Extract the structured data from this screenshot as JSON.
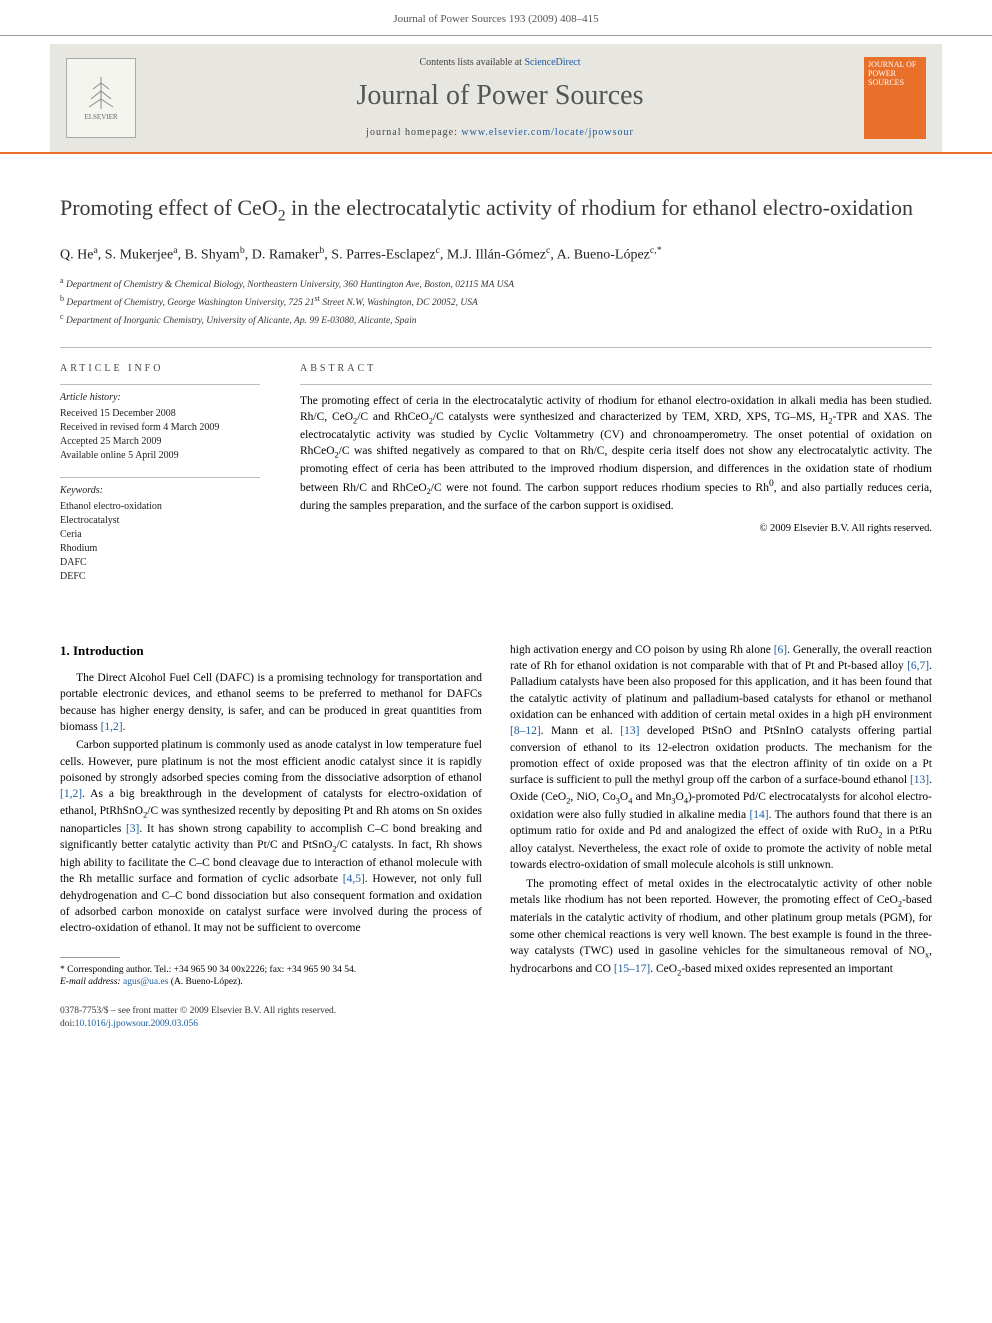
{
  "header": {
    "running_head": "Journal of Power Sources 193 (2009) 408–415"
  },
  "banner": {
    "contents_prefix": "Contents lists available at ",
    "contents_link": "ScienceDirect",
    "journal_name": "Journal of Power Sources",
    "homepage_prefix": "journal homepage: ",
    "homepage_url": "www.elsevier.com/locate/jpowsour",
    "publisher_label": "ELSEVIER",
    "cover_text": "JOURNAL OF POWER SOURCES"
  },
  "article": {
    "title_html": "Promoting effect of CeO<sub>2</sub> in the electrocatalytic activity of rhodium for ethanol electro-oxidation",
    "authors_html": "Q. He<sup>a</sup>, S. Mukerjee<sup>a</sup>, B. Shyam<sup>b</sup>, D. Ramaker<sup>b</sup>, S. Parres-Esclapez<sup>c</sup>, M.J. Illán-Gómez<sup>c</sup>, A. Bueno-López<sup>c,*</sup>",
    "affiliations": [
      "<sup>a</sup> Department of Chemistry & Chemical Biology, Northeastern University, 360 Huntington Ave, Boston, 02115 MA USA",
      "<sup>b</sup> Department of Chemistry, George Washington University, 725 21<sup>st</sup> Street N.W, Washington, DC 20052, USA",
      "<sup>c</sup> Department of Inorganic Chemistry, University of Alicante, Ap. 99 E-03080, Alicante, Spain"
    ]
  },
  "info": {
    "heading": "ARTICLE INFO",
    "history_label": "Article history:",
    "history": [
      "Received 15 December 2008",
      "Received in revised form 4 March 2009",
      "Accepted 25 March 2009",
      "Available online 5 April 2009"
    ],
    "keywords_label": "Keywords:",
    "keywords": [
      "Ethanol electro-oxidation",
      "Electrocatalyst",
      "Ceria",
      "Rhodium",
      "DAFC",
      "DEFC"
    ]
  },
  "abstract": {
    "heading": "ABSTRACT",
    "text_html": "The promoting effect of ceria in the electrocatalytic activity of rhodium for ethanol electro-oxidation in alkali media has been studied. Rh/C, CeO<sub>2</sub>/C and RhCeO<sub>2</sub>/C catalysts were synthesized and characterized by TEM, XRD, XPS, TG–MS, H<sub>2</sub>-TPR and XAS. The electrocatalytic activity was studied by Cyclic Voltammetry (CV) and chronoamperometry. The onset potential of oxidation on RhCeO<sub>2</sub>/C was shifted negatively as compared to that on Rh/C, despite ceria itself does not show any electrocatalytic activity. The promoting effect of ceria has been attributed to the improved rhodium dispersion, and differences in the oxidation state of rhodium between Rh/C and RhCeO<sub>2</sub>/C were not found. The carbon support reduces rhodium species to Rh<sup>0</sup>, and also partially reduces ceria, during the samples preparation, and the surface of the carbon support is oxidised.",
    "copyright": "© 2009 Elsevier B.V. All rights reserved."
  },
  "body": {
    "section1_heading": "1. Introduction",
    "col1_paras": [
      "The Direct Alcohol Fuel Cell (DAFC) is a promising technology for transportation and portable electronic devices, and ethanol seems to be preferred to methanol for DAFCs because has higher energy density, is safer, and can be produced in great quantities from biomass <span class=\"cite\">[1,2]</span>.",
      "Carbon supported platinum is commonly used as anode catalyst in low temperature fuel cells. However, pure platinum is not the most efficient anodic catalyst since it is rapidly poisoned by strongly adsorbed species coming from the dissociative adsorption of ethanol <span class=\"cite\">[1,2]</span>. As a big breakthrough in the development of catalysts for electro-oxidation of ethanol, PtRhSnO<sub>2</sub>/C was synthesized recently by depositing Pt and Rh atoms on Sn oxides nanoparticles <span class=\"cite\">[3]</span>. It has shown strong capability to accomplish C–C bond breaking and significantly better catalytic activity than Pt/C and PtSnO<sub>2</sub>/C catalysts. In fact, Rh shows high ability to facilitate the C–C bond cleavage due to interaction of ethanol molecule with the Rh metallic surface and formation of cyclic adsorbate <span class=\"cite\">[4,5]</span>. However, not only full dehydrogenation and C–C bond dissociation but also consequent formation and oxidation of adsorbed carbon monoxide on catalyst surface were involved during the process of electro-oxidation of ethanol. It may not be sufficient to overcome"
    ],
    "col2_paras": [
      "high activation energy and CO poison by using Rh alone <span class=\"cite\">[6]</span>. Generally, the overall reaction rate of Rh for ethanol oxidation is not comparable with that of Pt and Pt-based alloy <span class=\"cite\">[6,7]</span>. Palladium catalysts have been also proposed for this application, and it has been found that the catalytic activity of platinum and palladium-based catalysts for ethanol or methanol oxidation can be enhanced with addition of certain metal oxides in a high pH environment <span class=\"cite\">[8–12]</span>. Mann et al. <span class=\"cite\">[13]</span> developed PtSnO and PtSnInO catalysts offering partial conversion of ethanol to its 12-electron oxidation products. The mechanism for the promotion effect of oxide proposed was that the electron affinity of tin oxide on a Pt surface is sufficient to pull the methyl group off the carbon of a surface-bound ethanol <span class=\"cite\">[13]</span>. Oxide (CeO<sub>2</sub>, NiO, Co<sub>3</sub>O<sub>4</sub> and Mn<sub>3</sub>O<sub>4</sub>)-promoted Pd/C electrocatalysts for alcohol electro-oxidation were also fully studied in alkaline media <span class=\"cite\">[14]</span>. The authors found that there is an optimum ratio for oxide and Pd and analogized the effect of oxide with RuO<sub>2</sub> in a PtRu alloy catalyst. Nevertheless, the exact role of oxide to promote the activity of noble metal towards electro-oxidation of small molecule alcohols is still unknown.",
      "The promoting effect of metal oxides in the electrocatalytic activity of other noble metals like rhodium has not been reported. However, the promoting effect of CeO<sub>2</sub>-based materials in the catalytic activity of rhodium, and other platinum group metals (PGM), for some other chemical reactions is very well known. The best example is found in the three-way catalysts (TWC) used in gasoline vehicles for the simultaneous removal of NO<sub>x</sub>, hydrocarbons and CO <span class=\"cite\">[15–17]</span>. CeO<sub>2</sub>-based mixed oxides represented an important"
    ]
  },
  "footnote": {
    "corresponding": "* Corresponding author. Tel.: +34 965 90 34 00x2226; fax: +34 965 90 34 54.",
    "email_label": "E-mail address: ",
    "email": "agus@ua.es",
    "email_name": " (A. Bueno-López)."
  },
  "footer": {
    "issn_line": "0378-7753/$ – see front matter © 2009 Elsevier B.V. All rights reserved.",
    "doi_label": "doi:",
    "doi": "10.1016/j.jpowsour.2009.03.056"
  },
  "colors": {
    "accent_orange": "#e8702a",
    "link_blue": "#1a5a9e",
    "banner_bg": "#e8e6e0",
    "text_gray": "#555555"
  }
}
